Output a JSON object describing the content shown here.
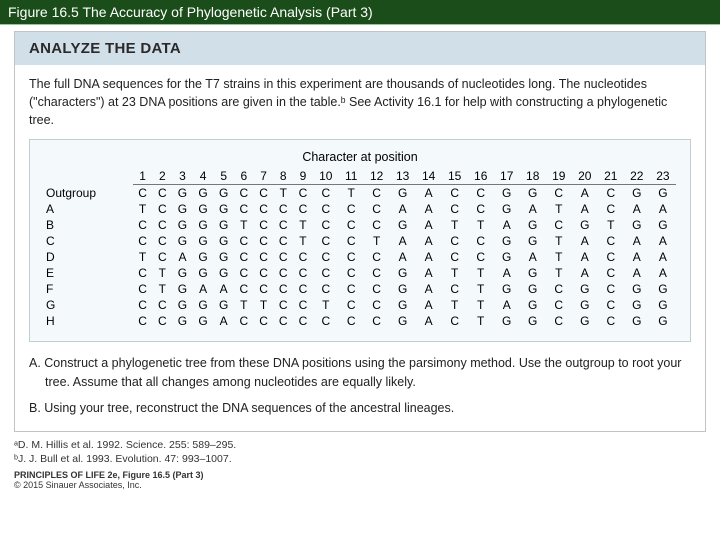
{
  "titleBar": "Figure 16.5 The Accuracy of Phylogenetic Analysis (Part 3)",
  "panelHeader": "ANALYZE THE DATA",
  "intro": "The full DNA sequences for the T7 strains in this experiment are thousands of nucleotides long. The nucleotides (\"characters\") at 23 DNA positions are given in the table.ᵇ See Activity 16.1 for help with constructing a phylogenetic tree.",
  "tableCaption": "Character at position",
  "positions": [
    "1",
    "2",
    "3",
    "4",
    "5",
    "6",
    "7",
    "8",
    "9",
    "10",
    "11",
    "12",
    "13",
    "14",
    "15",
    "16",
    "17",
    "18",
    "19",
    "20",
    "21",
    "22",
    "23"
  ],
  "rows": [
    {
      "label": "Outgroup",
      "seq": [
        "C",
        "C",
        "G",
        "G",
        "G",
        "C",
        "C",
        "T",
        "C",
        "C",
        "T",
        "C",
        "G",
        "A",
        "C",
        "C",
        "G",
        "G",
        "C",
        "A",
        "C",
        "G",
        "G"
      ]
    },
    {
      "label": "A",
      "seq": [
        "T",
        "C",
        "G",
        "G",
        "G",
        "C",
        "C",
        "C",
        "C",
        "C",
        "C",
        "C",
        "A",
        "A",
        "C",
        "C",
        "G",
        "A",
        "T",
        "A",
        "C",
        "A",
        "A"
      ]
    },
    {
      "label": "B",
      "seq": [
        "C",
        "C",
        "G",
        "G",
        "G",
        "T",
        "C",
        "C",
        "T",
        "C",
        "C",
        "C",
        "G",
        "A",
        "T",
        "T",
        "A",
        "G",
        "C",
        "G",
        "T",
        "G",
        "G"
      ]
    },
    {
      "label": "C",
      "seq": [
        "C",
        "C",
        "G",
        "G",
        "G",
        "C",
        "C",
        "C",
        "T",
        "C",
        "C",
        "T",
        "A",
        "A",
        "C",
        "C",
        "G",
        "G",
        "T",
        "A",
        "C",
        "A",
        "A"
      ]
    },
    {
      "label": "D",
      "seq": [
        "T",
        "C",
        "A",
        "G",
        "G",
        "C",
        "C",
        "C",
        "C",
        "C",
        "C",
        "C",
        "A",
        "A",
        "C",
        "C",
        "G",
        "A",
        "T",
        "A",
        "C",
        "A",
        "A"
      ]
    },
    {
      "label": "E",
      "seq": [
        "C",
        "T",
        "G",
        "G",
        "G",
        "C",
        "C",
        "C",
        "C",
        "C",
        "C",
        "C",
        "G",
        "A",
        "T",
        "T",
        "A",
        "G",
        "T",
        "A",
        "C",
        "A",
        "A"
      ]
    },
    {
      "label": "F",
      "seq": [
        "C",
        "T",
        "G",
        "A",
        "A",
        "C",
        "C",
        "C",
        "C",
        "C",
        "C",
        "C",
        "G",
        "A",
        "C",
        "T",
        "G",
        "G",
        "C",
        "G",
        "C",
        "G",
        "G"
      ]
    },
    {
      "label": "G",
      "seq": [
        "C",
        "C",
        "G",
        "G",
        "G",
        "T",
        "T",
        "C",
        "C",
        "T",
        "C",
        "C",
        "G",
        "A",
        "T",
        "T",
        "A",
        "G",
        "C",
        "G",
        "C",
        "G",
        "G"
      ]
    },
    {
      "label": "H",
      "seq": [
        "C",
        "C",
        "G",
        "G",
        "A",
        "C",
        "C",
        "C",
        "C",
        "C",
        "C",
        "C",
        "G",
        "A",
        "C",
        "T",
        "G",
        "G",
        "C",
        "G",
        "C",
        "G",
        "G"
      ]
    }
  ],
  "questionA": "A. Construct a phylogenetic tree from these DNA positions using the parsimony method. Use the outgroup to root your tree. Assume that all changes among nucleotides are equally likely.",
  "questionB": "B. Using your tree, reconstruct the DNA sequences of the ancestral lineages.",
  "footnoteA": "ᵃD. M. Hillis et al. 1992. Science. 255: 589–295.",
  "footnoteB": "ᵇJ. J. Bull et al. 1993. Evolution. 47: 993–1007.",
  "creditBold": "PRINCIPLES OF LIFE 2e, Figure 16.5 (Part 3)",
  "creditSmall": "© 2015 Sinauer Associates, Inc.",
  "colors": {
    "titleBarBg": "#1a4d1a",
    "titleBarText": "#ffffff",
    "panelHeaderBg": "#d0dfe8",
    "tableBg": "#f4f9fc",
    "borderColor": "#c0c4c8"
  }
}
